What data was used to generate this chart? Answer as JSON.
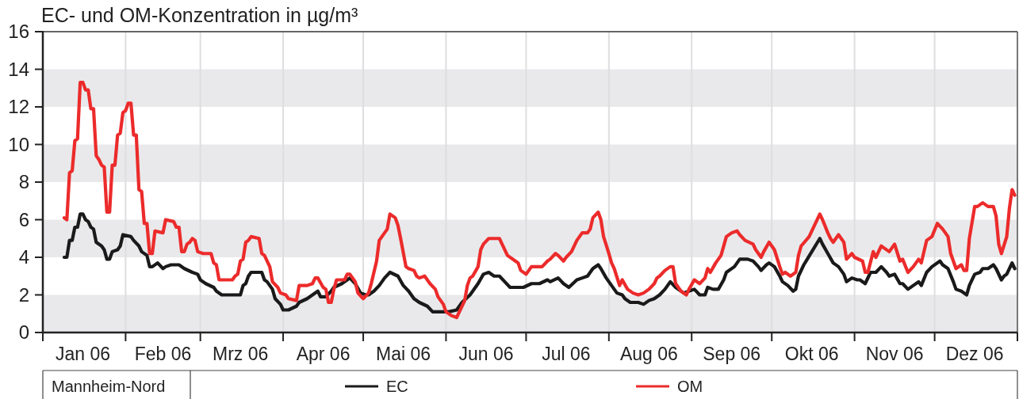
{
  "chart_data": {
    "type": "line",
    "title": "EC- und OM-Konzentration in µg/m³",
    "legend_title": "Mannheim-Nord",
    "legend": "bottom",
    "grid": true,
    "xlim": [
      "2006-01-01",
      "2007-01-01"
    ],
    "xticks": [
      {
        "value": "2006-01-01",
        "label": null
      },
      {
        "value": "2006-01-16",
        "label": "Jan 06"
      },
      {
        "value": "2006-02-01",
        "label": null
      },
      {
        "value": "2006-02-15",
        "label": "Feb 06"
      },
      {
        "value": "2006-03-01",
        "label": null
      },
      {
        "value": "2006-03-16",
        "label": "Mrz 06"
      },
      {
        "value": "2006-04-01",
        "label": null
      },
      {
        "value": "2006-04-16",
        "label": "Apr 06"
      },
      {
        "value": "2006-05-01",
        "label": null
      },
      {
        "value": "2006-05-16",
        "label": "Mai 06"
      },
      {
        "value": "2006-06-01",
        "label": null
      },
      {
        "value": "2006-06-16",
        "label": "Jun 06"
      },
      {
        "value": "2006-07-01",
        "label": null
      },
      {
        "value": "2006-07-16",
        "label": "Jul 06"
      },
      {
        "value": "2006-08-01",
        "label": null
      },
      {
        "value": "2006-08-16",
        "label": "Aug 06"
      },
      {
        "value": "2006-09-01",
        "label": null
      },
      {
        "value": "2006-09-16",
        "label": "Sep 06"
      },
      {
        "value": "2006-10-01",
        "label": null
      },
      {
        "value": "2006-10-16",
        "label": "Okt 06"
      },
      {
        "value": "2006-11-01",
        "label": null
      },
      {
        "value": "2006-11-16",
        "label": "Nov 06"
      },
      {
        "value": "2006-12-01",
        "label": null
      },
      {
        "value": "2006-12-16",
        "label": "Dez 06"
      },
      {
        "value": "2007-01-01",
        "label": null
      }
    ],
    "ylim": [
      0,
      16
    ],
    "yticks": [
      0,
      2,
      4,
      6,
      8,
      10,
      12,
      14,
      16
    ],
    "series": [
      {
        "name": "EC",
        "color": "#1a1a1a",
        "x": [
          "2006-01-09",
          "2006-01-10",
          "2006-01-11",
          "2006-01-12",
          "2006-01-13",
          "2006-01-14",
          "2006-01-15",
          "2006-01-16",
          "2006-01-17",
          "2006-01-18",
          "2006-01-19",
          "2006-01-20",
          "2006-01-21",
          "2006-01-23",
          "2006-01-24",
          "2006-01-25",
          "2006-01-26",
          "2006-01-27",
          "2006-01-29",
          "2006-01-30",
          "2006-01-31",
          "2006-02-03",
          "2006-02-04",
          "2006-02-06",
          "2006-02-07",
          "2006-02-09",
          "2006-02-10",
          "2006-02-11",
          "2006-02-13",
          "2006-02-15",
          "2006-02-16",
          "2006-02-18",
          "2006-02-21",
          "2006-02-23",
          "2006-02-26",
          "2006-02-28",
          "2006-03-01",
          "2006-03-03",
          "2006-03-06",
          "2006-03-07",
          "2006-03-09",
          "2006-03-16",
          "2006-03-17",
          "2006-03-18",
          "2006-03-19",
          "2006-03-20",
          "2006-03-24",
          "2006-03-25",
          "2006-03-26",
          "2006-03-28",
          "2006-03-29",
          "2006-03-31",
          "2006-04-01",
          "2006-04-03",
          "2006-04-06",
          "2006-04-07",
          "2006-04-10",
          "2006-04-12",
          "2006-04-14",
          "2006-04-15",
          "2006-04-17",
          "2006-04-19",
          "2006-04-20",
          "2006-04-23",
          "2006-04-25",
          "2006-04-26",
          "2006-04-28",
          "2006-04-30",
          "2006-05-02",
          "2006-05-03",
          "2006-05-05",
          "2006-05-07",
          "2006-05-09",
          "2006-05-11",
          "2006-05-14",
          "2006-05-16",
          "2006-05-18",
          "2006-05-20",
          "2006-05-22",
          "2006-05-25",
          "2006-05-27",
          "2006-05-31",
          "2006-06-02",
          "2006-06-05",
          "2006-06-07",
          "2006-06-10",
          "2006-06-11",
          "2006-06-13",
          "2006-06-15",
          "2006-06-17",
          "2006-06-19",
          "2006-06-21",
          "2006-06-23",
          "2006-06-25",
          "2006-06-28",
          "2006-06-30",
          "2006-07-03",
          "2006-07-06",
          "2006-07-09",
          "2006-07-10",
          "2006-07-13",
          "2006-07-15",
          "2006-07-17",
          "2006-07-20",
          "2006-07-22",
          "2006-07-24",
          "2006-07-26",
          "2006-07-28",
          "2006-07-29",
          "2006-07-31",
          "2006-08-02",
          "2006-08-04",
          "2006-08-06",
          "2006-08-07",
          "2006-08-09",
          "2006-08-12",
          "2006-08-14",
          "2006-08-16",
          "2006-08-18",
          "2006-08-20",
          "2006-08-22",
          "2006-08-24",
          "2006-08-26",
          "2006-08-29",
          "2006-08-31",
          "2006-09-02",
          "2006-09-04",
          "2006-09-06",
          "2006-09-07",
          "2006-09-09",
          "2006-09-11",
          "2006-09-13",
          "2006-09-14",
          "2006-09-17",
          "2006-09-19",
          "2006-09-22",
          "2006-09-24",
          "2006-09-26",
          "2006-09-27",
          "2006-09-29",
          "2006-09-30",
          "2006-10-02",
          "2006-10-04",
          "2006-10-05",
          "2006-10-07",
          "2006-10-09",
          "2006-10-10",
          "2006-10-11",
          "2006-10-13",
          "2006-10-16",
          "2006-10-19",
          "2006-10-20",
          "2006-10-22",
          "2006-10-24",
          "2006-10-26",
          "2006-10-28",
          "2006-10-29",
          "2006-10-31",
          "2006-11-02",
          "2006-11-03",
          "2006-11-05",
          "2006-11-07",
          "2006-11-09",
          "2006-11-11",
          "2006-11-13",
          "2006-11-14",
          "2006-11-16",
          "2006-11-18",
          "2006-11-19",
          "2006-11-21",
          "2006-11-23",
          "2006-11-25",
          "2006-11-26",
          "2006-11-28",
          "2006-11-30",
          "2006-12-03",
          "2006-12-04",
          "2006-12-06",
          "2006-12-08",
          "2006-12-09",
          "2006-12-11",
          "2006-12-13",
          "2006-12-14",
          "2006-12-16",
          "2006-12-18",
          "2006-12-19",
          "2006-12-21",
          "2006-12-23",
          "2006-12-24",
          "2006-12-26",
          "2006-12-27",
          "2006-12-28",
          "2006-12-30",
          "2006-12-31"
        ],
        "values": [
          4.0,
          4.0,
          4.9,
          4.9,
          5.6,
          5.6,
          6.3,
          6.3,
          6.0,
          5.9,
          5.6,
          5.5,
          4.8,
          4.6,
          4.4,
          3.9,
          3.9,
          4.3,
          4.4,
          4.6,
          5.2,
          5.1,
          4.9,
          4.6,
          4.3,
          4.1,
          3.5,
          3.5,
          3.7,
          3.4,
          3.5,
          3.6,
          3.6,
          3.4,
          3.2,
          3.1,
          2.8,
          2.6,
          2.4,
          2.2,
          2.0,
          2.0,
          2.5,
          2.6,
          3.0,
          3.2,
          3.2,
          2.8,
          2.7,
          2.3,
          1.8,
          1.5,
          1.2,
          1.2,
          1.4,
          1.6,
          1.8,
          2.0,
          2.2,
          1.9,
          1.9,
          2.2,
          2.4,
          2.6,
          2.8,
          2.9,
          2.6,
          2.1,
          2.0,
          2.0,
          2.2,
          2.5,
          2.9,
          3.2,
          3.0,
          2.5,
          2.2,
          1.8,
          1.6,
          1.4,
          1.1,
          1.1,
          1.1,
          1.2,
          1.6,
          2.0,
          2.2,
          2.6,
          3.1,
          3.2,
          3.0,
          3.0,
          2.7,
          2.4,
          2.4,
          2.4,
          2.6,
          2.6,
          2.8,
          2.7,
          2.9,
          2.6,
          2.4,
          2.8,
          2.9,
          3.0,
          3.4,
          3.6,
          3.4,
          2.9,
          2.5,
          2.1,
          2.0,
          1.8,
          1.6,
          1.6,
          1.5,
          1.7,
          1.8,
          2.0,
          2.3,
          2.7,
          2.4,
          2.1,
          2.2,
          2.3,
          2.0,
          2.0,
          2.4,
          2.3,
          2.3,
          2.8,
          3.2,
          3.5,
          3.9,
          3.9,
          3.8,
          3.5,
          3.3,
          3.6,
          3.7,
          3.5,
          3.0,
          2.7,
          2.5,
          2.2,
          2.3,
          3.0,
          3.6,
          4.3,
          5.0,
          4.7,
          4.2,
          3.7,
          3.5,
          3.1,
          2.7,
          2.9,
          2.8,
          2.8,
          2.6,
          3.2,
          3.2,
          3.5,
          3.2,
          3.0,
          3.1,
          2.6,
          2.6,
          2.3,
          2.5,
          2.7,
          2.5,
          3.2,
          3.5,
          3.8,
          3.6,
          3.4,
          2.7,
          2.3,
          2.2,
          2.0,
          2.5,
          3.1,
          3.2,
          3.4,
          3.4,
          3.6,
          3.4,
          2.8,
          3.0,
          3.1,
          3.7,
          3.4
        ]
      },
      {
        "name": "OM",
        "color": "#ec2b2b",
        "x": [
          "2006-01-09",
          "2006-01-10",
          "2006-01-11",
          "2006-01-12",
          "2006-01-13",
          "2006-01-14",
          "2006-01-15",
          "2006-01-16",
          "2006-01-17",
          "2006-01-18",
          "2006-01-19",
          "2006-01-20",
          "2006-01-21",
          "2006-01-22",
          "2006-01-23",
          "2006-01-24",
          "2006-01-25",
          "2006-01-26",
          "2006-01-27",
          "2006-01-28",
          "2006-01-29",
          "2006-01-30",
          "2006-01-31",
          "2006-02-01",
          "2006-02-02",
          "2006-02-03",
          "2006-02-04",
          "2006-02-05",
          "2006-02-06",
          "2006-02-07",
          "2006-02-08",
          "2006-02-09",
          "2006-02-10",
          "2006-02-11",
          "2006-02-12",
          "2006-02-15",
          "2006-02-16",
          "2006-02-19",
          "2006-02-20",
          "2006-02-21",
          "2006-02-22",
          "2006-02-23",
          "2006-02-24",
          "2006-02-25",
          "2006-02-26",
          "2006-02-27",
          "2006-02-28",
          "2006-03-02",
          "2006-03-05",
          "2006-03-06",
          "2006-03-07",
          "2006-03-08",
          "2006-03-13",
          "2006-03-14",
          "2006-03-15",
          "2006-03-16",
          "2006-03-17",
          "2006-03-18",
          "2006-03-19",
          "2006-03-20",
          "2006-03-23",
          "2006-03-24",
          "2006-03-25",
          "2006-03-27",
          "2006-03-28",
          "2006-03-30",
          "2006-03-31",
          "2006-04-02",
          "2006-04-03",
          "2006-04-06",
          "2006-04-07",
          "2006-04-10",
          "2006-04-12",
          "2006-04-13",
          "2006-04-14",
          "2006-04-16",
          "2006-04-17",
          "2006-04-18",
          "2006-04-19",
          "2006-04-20",
          "2006-04-21",
          "2006-04-24",
          "2006-04-25",
          "2006-04-26",
          "2006-04-28",
          "2006-04-29",
          "2006-05-01",
          "2006-05-03",
          "2006-05-04",
          "2006-05-06",
          "2006-05-07",
          "2006-05-09",
          "2006-05-10",
          "2006-05-11",
          "2006-05-13",
          "2006-05-14",
          "2006-05-15",
          "2006-05-17",
          "2006-05-18",
          "2006-05-20",
          "2006-05-21",
          "2006-05-22",
          "2006-05-24",
          "2006-05-26",
          "2006-05-28",
          "2006-05-29",
          "2006-05-31",
          "2006-06-01",
          "2006-06-03",
          "2006-06-05",
          "2006-06-06",
          "2006-06-08",
          "2006-06-09",
          "2006-06-10",
          "2006-06-11",
          "2006-06-13",
          "2006-06-14",
          "2006-06-15",
          "2006-06-17",
          "2006-06-19",
          "2006-06-21",
          "2006-06-22",
          "2006-06-24",
          "2006-06-27",
          "2006-06-28",
          "2006-06-29",
          "2006-07-01",
          "2006-07-03",
          "2006-07-05",
          "2006-07-07",
          "2006-07-09",
          "2006-07-10",
          "2006-07-12",
          "2006-07-13",
          "2006-07-15",
          "2006-07-16",
          "2006-07-18",
          "2006-07-20",
          "2006-07-22",
          "2006-07-24",
          "2006-07-25",
          "2006-07-26",
          "2006-07-28",
          "2006-07-29",
          "2006-07-30",
          "2006-08-01",
          "2006-08-02",
          "2006-08-03",
          "2006-08-05",
          "2006-08-06",
          "2006-08-08",
          "2006-08-10",
          "2006-08-12",
          "2006-08-14",
          "2006-08-16",
          "2006-08-18",
          "2006-08-19",
          "2006-08-20",
          "2006-08-22",
          "2006-08-24",
          "2006-08-25",
          "2006-08-26",
          "2006-08-28",
          "2006-08-30",
          "2006-08-31",
          "2006-09-02",
          "2006-09-04",
          "2006-09-06",
          "2006-09-07",
          "2006-09-08",
          "2006-09-10",
          "2006-09-12",
          "2006-09-14",
          "2006-09-16",
          "2006-09-18",
          "2006-09-19",
          "2006-09-21",
          "2006-09-24",
          "2006-09-25",
          "2006-09-27",
          "2006-09-28",
          "2006-09-30",
          "2006-10-02",
          "2006-10-04",
          "2006-10-05",
          "2006-10-06",
          "2006-10-08",
          "2006-10-10",
          "2006-10-11",
          "2006-10-12",
          "2006-10-15",
          "2006-10-17",
          "2006-10-19",
          "2006-10-20",
          "2006-10-22",
          "2006-10-23",
          "2006-10-24",
          "2006-10-26",
          "2006-10-28",
          "2006-10-29",
          "2006-10-31",
          "2006-11-01",
          "2006-11-04",
          "2006-11-05",
          "2006-11-06",
          "2006-11-08",
          "2006-11-09",
          "2006-11-11",
          "2006-11-12",
          "2006-11-14",
          "2006-11-16",
          "2006-11-18",
          "2006-11-19",
          "2006-11-21",
          "2006-11-23",
          "2006-11-25",
          "2006-11-26",
          "2006-11-28",
          "2006-11-30",
          "2006-12-02",
          "2006-12-04",
          "2006-12-06",
          "2006-12-07",
          "2006-12-09",
          "2006-12-11",
          "2006-12-12",
          "2006-12-13",
          "2006-12-14",
          "2006-12-16",
          "2006-12-17",
          "2006-12-19",
          "2006-12-21",
          "2006-12-23",
          "2006-12-24",
          "2006-12-25",
          "2006-12-26",
          "2006-12-28",
          "2006-12-29",
          "2006-12-30",
          "2006-12-31"
        ],
        "values": [
          6.1,
          6.0,
          8.5,
          8.6,
          10.2,
          10.3,
          13.3,
          13.3,
          12.9,
          12.9,
          11.9,
          11.9,
          9.4,
          9.2,
          8.9,
          8.8,
          6.4,
          6.4,
          8.9,
          8.9,
          10.5,
          10.6,
          11.7,
          11.8,
          12.2,
          12.2,
          10.5,
          10.5,
          7.6,
          7.5,
          5.8,
          5.8,
          4.2,
          4.2,
          5.4,
          5.3,
          6.0,
          5.9,
          5.6,
          5.6,
          4.3,
          4.3,
          4.7,
          4.8,
          5.0,
          4.9,
          4.3,
          4.2,
          4.2,
          3.7,
          3.6,
          2.8,
          2.8,
          3.0,
          3.1,
          3.8,
          3.9,
          4.8,
          4.9,
          5.1,
          5.0,
          4.2,
          4.1,
          3.5,
          2.7,
          2.4,
          2.1,
          2.0,
          1.8,
          1.7,
          2.5,
          2.5,
          2.6,
          2.9,
          2.9,
          2.4,
          2.3,
          1.6,
          1.6,
          2.3,
          2.8,
          2.8,
          3.1,
          3.1,
          2.7,
          2.1,
          1.8,
          2.1,
          2.6,
          3.8,
          4.9,
          5.3,
          5.5,
          6.3,
          6.1,
          5.7,
          5.0,
          3.5,
          3.4,
          3.3,
          3.0,
          2.9,
          3.0,
          2.6,
          2.3,
          1.9,
          1.5,
          1.1,
          0.9,
          0.8,
          1.1,
          1.7,
          2.5,
          2.9,
          3.0,
          3.5,
          4.4,
          4.7,
          5.0,
          5.0,
          5.0,
          4.7,
          4.1,
          3.8,
          3.7,
          3.3,
          3.1,
          3.5,
          3.5,
          3.5,
          3.8,
          3.9,
          4.2,
          4.1,
          3.8,
          4.0,
          4.3,
          4.9,
          5.3,
          5.3,
          5.5,
          6.1,
          6.4,
          6.0,
          5.1,
          4.2,
          3.7,
          3.4,
          2.5,
          2.8,
          2.3,
          2.1,
          2.0,
          2.1,
          2.3,
          2.6,
          2.9,
          3.0,
          3.3,
          3.5,
          3.5,
          2.6,
          2.2,
          2.0,
          2.3,
          2.8,
          2.6,
          2.9,
          3.4,
          3.2,
          3.7,
          4.1,
          5.1,
          5.3,
          5.4,
          5.2,
          4.9,
          4.7,
          4.4,
          4.0,
          4.3,
          4.8,
          4.4,
          3.5,
          3.1,
          3.2,
          3.0,
          3.2,
          4.1,
          4.6,
          5.1,
          5.7,
          6.3,
          6.0,
          5.3,
          5.0,
          4.8,
          5.2,
          4.8,
          3.9,
          4.2,
          4.0,
          3.8,
          3.2,
          3.2,
          4.3,
          4.0,
          4.6,
          4.5,
          4.3,
          4.7,
          3.8,
          3.9,
          3.2,
          3.5,
          3.9,
          3.7,
          4.9,
          5.1,
          5.8,
          5.5,
          5.1,
          4.2,
          3.4,
          3.6,
          3.3,
          3.3,
          5.0,
          6.7,
          6.7,
          6.9,
          6.7,
          6.7,
          6.2,
          4.7,
          4.2,
          5.1,
          6.6,
          7.6,
          7.3
        ]
      }
    ]
  }
}
